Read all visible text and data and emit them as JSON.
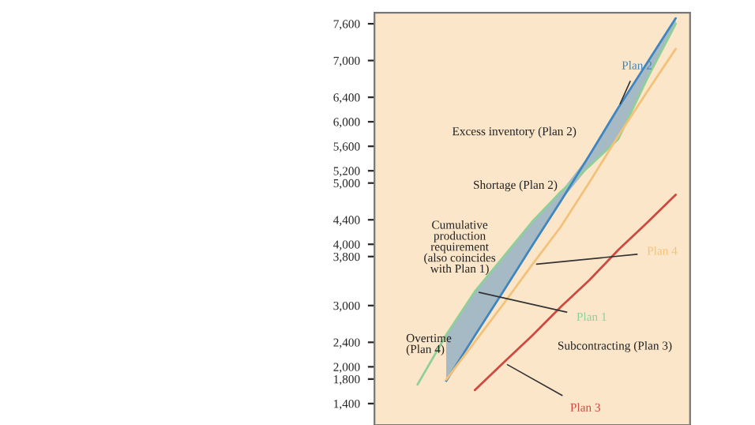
{
  "chart_data": {
    "type": "line",
    "categories": [
      null,
      null,
      null,
      null,
      null,
      null,
      null,
      null,
      null,
      null,
      null
    ],
    "ylim": [
      1050,
      7780
    ],
    "yticks": [
      {
        "value": 1400,
        "label": "1,400"
      },
      {
        "value": 1800,
        "label": "1,800"
      },
      {
        "value": 2000,
        "label": "2,000"
      },
      {
        "value": 2400,
        "label": "2,400"
      },
      {
        "value": 3000,
        "label": "3,000"
      },
      {
        "value": 3800,
        "label": "3,800"
      },
      {
        "value": 4000,
        "label": "4,000"
      },
      {
        "value": 4400,
        "label": "4,400"
      },
      {
        "value": 5000,
        "label": "5,000"
      },
      {
        "value": 5200,
        "label": "5,200"
      },
      {
        "value": 5600,
        "label": "5,600"
      },
      {
        "value": 6000,
        "label": "6,000"
      },
      {
        "value": 6400,
        "label": "6,400"
      },
      {
        "value": 7000,
        "label": "7,000"
      },
      {
        "value": 7600,
        "label": "7,600"
      }
    ],
    "tick_labels": "y",
    "series": [
      {
        "name": "Plan 1",
        "color": "#8fcf9a",
        "values": [
          null,
          1710,
          2520,
          3230,
          3800,
          4370,
          4860,
          5280,
          5720,
          6700,
          7600
        ]
      },
      {
        "name": "Plan 2",
        "color": "#3f86c0",
        "values": [
          null,
          null,
          1770,
          2510,
          3240,
          3980,
          4710,
          5460,
          6230,
          6960,
          7690
        ],
        "lower": [
          null,
          null,
          1770,
          2510,
          3240,
          3980,
          4710,
          5280,
          5720,
          6700,
          7600
        ],
        "upper": [
          null,
          null,
          2520,
          3230,
          3800,
          4370,
          4860,
          5460,
          6230,
          6960,
          7690
        ]
      },
      {
        "name": "Plan 3",
        "color": "#cc4a40",
        "values": [
          null,
          null,
          null,
          1620,
          2070,
          2510,
          2980,
          3420,
          3910,
          4350,
          4810
        ]
      },
      {
        "name": "Plan 4",
        "color": "#f2c27a",
        "values": [
          null,
          null,
          1790,
          2410,
          3030,
          3670,
          4290,
          5020,
          5770,
          6490,
          7190
        ]
      }
    ],
    "annotations": [
      "Excess inventory (Plan 2)",
      "Shortage (Plan 2)",
      "Cumulative\nproduction\nrequirement\n(also coincides\nwith Plan 1)",
      "Overtime\n(Plan 4)",
      "Subcontracting (Plan 3)"
    ],
    "grid": false,
    "legend": false
  }
}
